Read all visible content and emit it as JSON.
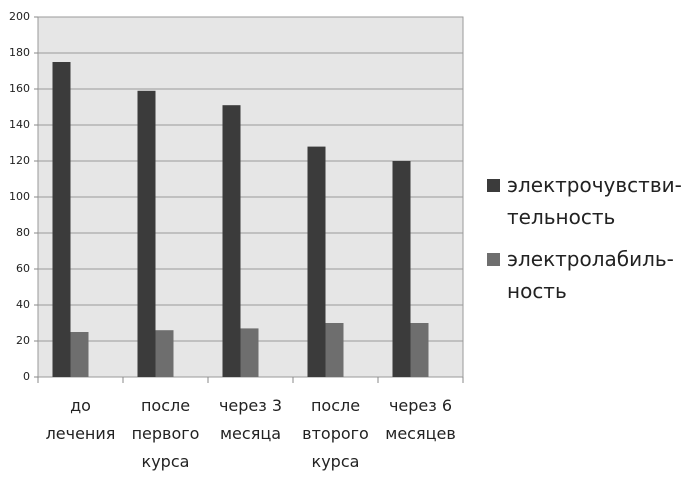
{
  "chart_data": {
    "type": "bar",
    "categories": [
      "до\nлечения",
      "после\nпервого\nкурса",
      "через 3\nмесяца",
      "после\nвторого\nкурса",
      "через 6\nмесяцев"
    ],
    "series": [
      {
        "name": "электрочувстви-\nтельность",
        "color": "#3b3b3b",
        "values": [
          175,
          159,
          151,
          128,
          120
        ]
      },
      {
        "name": "электролабиль-\nность",
        "color": "#6e6e6e",
        "values": [
          25,
          26,
          27,
          30,
          30
        ]
      }
    ],
    "ylim": [
      0,
      200
    ],
    "yticks": [
      0,
      20,
      40,
      60,
      80,
      100,
      120,
      140,
      160,
      180,
      200
    ],
    "grid": true,
    "legend": "right"
  }
}
